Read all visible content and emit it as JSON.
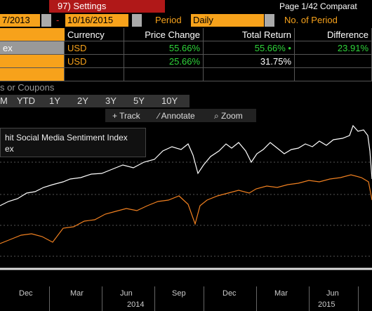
{
  "header": {
    "settings": "97) Settings",
    "page": "Page 1/42 Comparat",
    "start_date": "7/2013",
    "dash": "-",
    "end_date": "10/16/2015",
    "period_label": "Period",
    "period": "Daily",
    "num_periods": "No. of Period"
  },
  "table": {
    "columns": [
      "Currency",
      "Price Change",
      "Total Return",
      "Difference"
    ],
    "rows": [
      [
        "ex",
        "USD",
        "55.66%",
        "55.66% •",
        "23.91%"
      ],
      [
        "",
        "USD",
        "25.66%",
        "31.75%",
        ""
      ],
      [
        "",
        "",
        "",
        "",
        ""
      ]
    ]
  },
  "coupons": "s or Coupons",
  "ranges": [
    "M",
    "YTD",
    "1Y",
    "2Y",
    "3Y",
    "5Y",
    "10Y"
  ],
  "tools": [
    "+ Track",
    "∕ Annotate",
    "⌕ Zoom"
  ],
  "legend": [
    "hit Social Media Sentiment Index",
    "ex"
  ],
  "x_axis": {
    "months": [
      "Dec",
      "Mar",
      "Jun",
      "Sep",
      "Dec",
      "Mar",
      "Jun"
    ],
    "years": [
      "2014",
      "2015"
    ]
  }
}
